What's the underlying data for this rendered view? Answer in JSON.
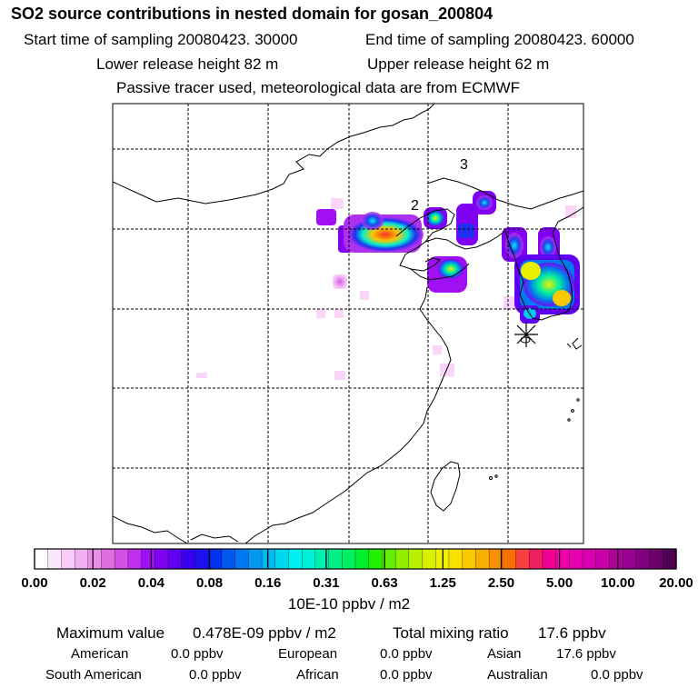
{
  "header": {
    "title": "SO2 source contributions in nested domain for gosan_200804",
    "start_label": "Start time of sampling 20080423. 30000",
    "end_label": "End time of sampling 20080423. 60000",
    "lower_label": "Lower release height   82 m",
    "upper_label": "Upper release height   62 m",
    "note": "Passive tracer used, meteorological data are from ECMWF"
  },
  "map": {
    "labels": [
      "2",
      "3"
    ],
    "receptor": "star-marker"
  },
  "colorbar": {
    "ticks": [
      "0.00",
      "0.02",
      "0.04",
      "0.08",
      "0.16",
      "0.31",
      "0.63",
      "1.25",
      "2.50",
      "5.00",
      "10.00",
      "20.00"
    ],
    "unit": "10E-10 ppbv / m2",
    "colors": [
      "#ffffff",
      "#fbe6fb",
      "#f7ccf7",
      "#f1b0f1",
      "#e88ee8",
      "#de6ede",
      "#d350e6",
      "#c030f0",
      "#a010f2",
      "#8000f2",
      "#6000f0",
      "#3a00ee",
      "#1a10f0",
      "#0030f0",
      "#0058f0",
      "#0078f0",
      "#0098f0",
      "#00b8f0",
      "#00d8f0",
      "#00f0f0",
      "#00f0d8",
      "#00f0b0",
      "#00f088",
      "#00f060",
      "#00f030",
      "#20f000",
      "#60f000",
      "#90f000",
      "#b8f000",
      "#d8f000",
      "#f0f000",
      "#f8e000",
      "#f8c800",
      "#f8b000",
      "#f89000",
      "#f87000",
      "#f84040",
      "#f02060",
      "#f00090",
      "#f000a8",
      "#e800b0",
      "#d800b0",
      "#c800a8",
      "#b0009c",
      "#980090",
      "#800080",
      "#6a0068",
      "#500050"
    ]
  },
  "stats": {
    "max_label": "Maximum value",
    "max_value": "0.478E-09 ppbv / m2",
    "total_label": "Total mixing ratio",
    "total_value": "17.6 ppbv",
    "american_label": "American",
    "american_value": "0.0 ppbv",
    "european_label": "European",
    "european_value": "0.0 ppbv",
    "asian_label": "Asian",
    "asian_value": "17.6 ppbv",
    "south_american_label": "South American",
    "south_american_value": "0.0 ppbv",
    "african_label": "African",
    "african_value": "0.0 ppbv",
    "australian_label": "Australian",
    "australian_value": "0.0 ppbv"
  }
}
